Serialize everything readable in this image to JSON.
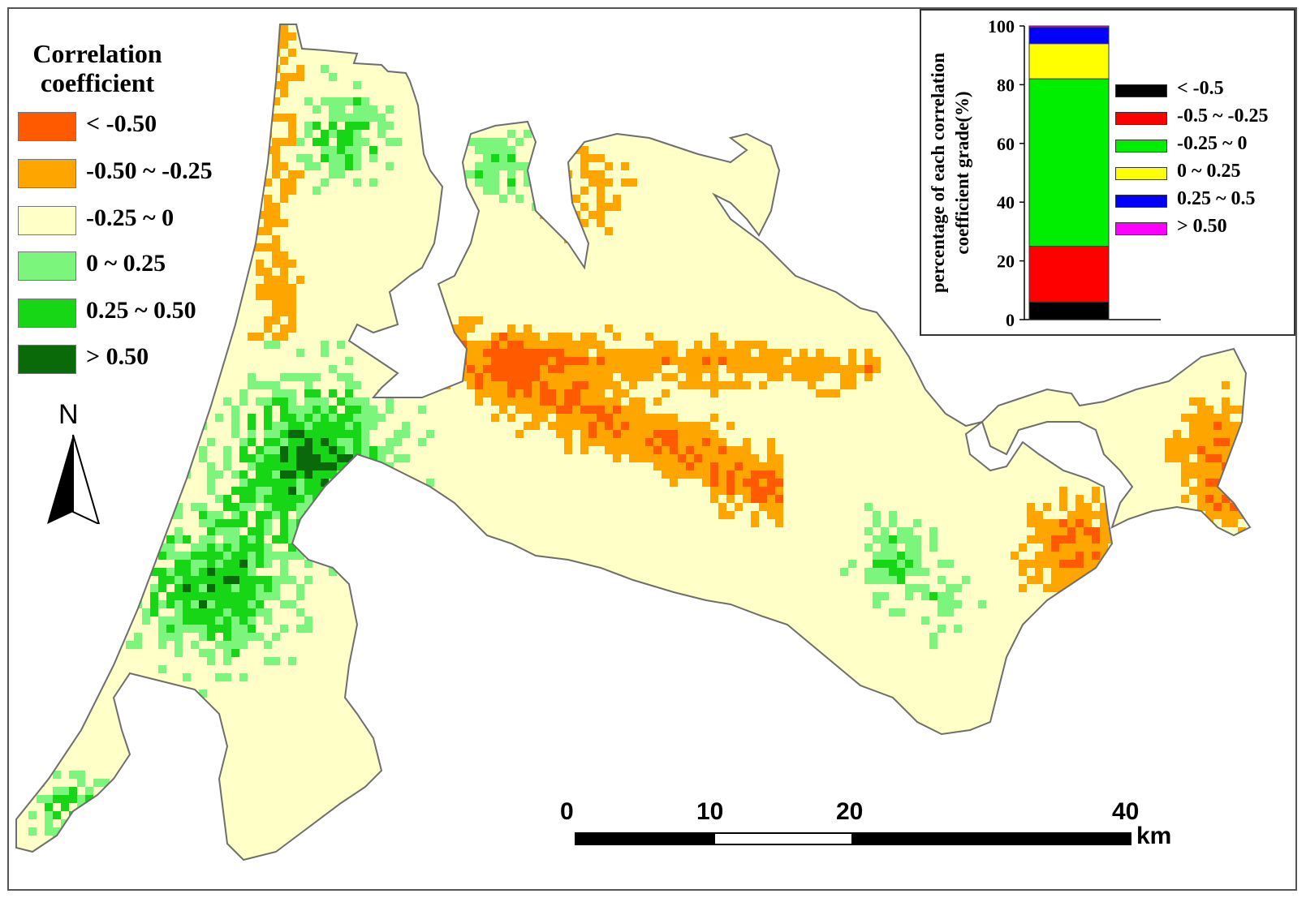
{
  "legend": {
    "title_line1": "Correlation",
    "title_line2": "coefficient",
    "classes": [
      {
        "label": "< -0.50",
        "color": "#ff5a00"
      },
      {
        "label": "-0.50 ~ -0.25",
        "color": "#ffa500"
      },
      {
        "label": "-0.25 ~ 0",
        "color": "#ffffc8"
      },
      {
        "label": "0 ~ 0.25",
        "color": "#7cf57c"
      },
      {
        "label": "0.25 ~ 0.50",
        "color": "#16d616"
      },
      {
        "label": "> 0.50",
        "color": "#0a6a0a"
      }
    ]
  },
  "north_arrow": {
    "letter": "N",
    "icon": "north-arrow-icon"
  },
  "scale_bar": {
    "ticks": [
      "0",
      "10",
      "20",
      "40"
    ],
    "unit": "km"
  },
  "map": {
    "boundary_color": "#6e6e6e"
  },
  "chart_data": {
    "type": "bar",
    "stacked": true,
    "ylabel_line1": "percentage of each correlation",
    "ylabel_line2": "coefficient grade(%)",
    "ylim": [
      0,
      100
    ],
    "yticks": [
      "0",
      "20",
      "40",
      "60",
      "80",
      "100"
    ],
    "series": [
      {
        "name": "< -0.5",
        "color": "#000000",
        "value": 6
      },
      {
        "name": "-0.5 ~ -0.25",
        "color": "#ff0000",
        "value": 19
      },
      {
        "name": "-0.25 ~ 0",
        "color": "#00ee00",
        "value": 57
      },
      {
        "name": "0 ~ 0.25",
        "color": "#ffff00",
        "value": 12
      },
      {
        "name": "0.25 ~ 0.5",
        "color": "#0000ff",
        "value": 5.5
      },
      {
        "name": "> 0.50",
        "color": "#ff00ff",
        "value": 0.5
      }
    ]
  }
}
